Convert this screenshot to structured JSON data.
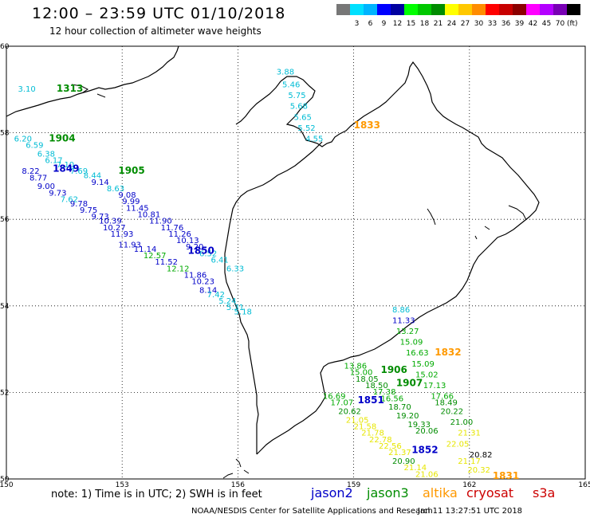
{
  "header": {
    "title": "12:00 – 23:59 UTC 01/10/2018",
    "subtitle": "12 hour collection of altimeter wave heights"
  },
  "color_scale": {
    "colors": [
      "#777777",
      "#00e0ff",
      "#00b4ff",
      "#0000ff",
      "#0000a0",
      "#00ff00",
      "#00c800",
      "#008c00",
      "#ffff00",
      "#ffc800",
      "#ff8c00",
      "#ff0000",
      "#c80000",
      "#8c0000",
      "#ff00ff",
      "#b400ff",
      "#7800b4",
      "#000000"
    ],
    "labels": [
      "3",
      "6",
      "9",
      "12",
      "15",
      "18",
      "21",
      "24",
      "27",
      "30",
      "33",
      "36",
      "39",
      "42",
      "45",
      "70"
    ],
    "unit": "(ft)"
  },
  "map": {
    "lon_range": [
      150,
      165
    ],
    "lat_range": [
      50,
      60
    ],
    "x_ticks": [
      "150",
      "153",
      "156",
      "159",
      "162",
      "165"
    ],
    "y_ticks": [
      "60",
      "58",
      "56",
      "54",
      "52",
      "50"
    ],
    "grid": "dotted",
    "land_color": "#ffffff",
    "coast_color": "#000000"
  },
  "satellite_colors": {
    "jason2": "#0000c8",
    "jason3": "#008c00",
    "altika": "#ff9900",
    "cryosat": "#cc0000",
    "s3a": "#cc0000",
    "light_blue": "#00bcd4",
    "green": "#00aa00",
    "yellow": "#e6e600"
  },
  "passes": [
    {
      "label": "1313",
      "color": "#008c00",
      "lon": 151.3,
      "lat": 58.95
    },
    {
      "label": "1833",
      "color": "#ff9900",
      "lon": 159.0,
      "lat": 58.1
    },
    {
      "label": "1904",
      "color": "#008c00",
      "lon": 151.1,
      "lat": 57.8
    },
    {
      "label": "1849",
      "color": "#0000c8",
      "lon": 151.2,
      "lat": 57.1
    },
    {
      "label": "1905",
      "color": "#008c00",
      "lon": 152.9,
      "lat": 57.05
    },
    {
      "label": "1850",
      "color": "#0000c8",
      "lon": 154.7,
      "lat": 55.2
    },
    {
      "label": "1832",
      "color": "#ff9900",
      "lon": 161.1,
      "lat": 52.85
    },
    {
      "label": "1906",
      "color": "#008c00",
      "lon": 159.7,
      "lat": 52.45
    },
    {
      "label": "1907",
      "color": "#008c00",
      "lon": 160.1,
      "lat": 52.15
    },
    {
      "label": "1851",
      "color": "#0000c8",
      "lon": 159.1,
      "lat": 51.75
    },
    {
      "label": "1852",
      "color": "#0000c8",
      "lon": 160.5,
      "lat": 50.6
    },
    {
      "label": "1831",
      "color": "#ff9900",
      "lon": 162.6,
      "lat": 50.0
    }
  ],
  "observations": [
    {
      "v": "3.10",
      "c": "#00bcd4",
      "lon": 150.3,
      "lat": 58.95
    },
    {
      "v": "3.88",
      "c": "#00bcd4",
      "lon": 157.0,
      "lat": 59.35
    },
    {
      "v": "5.46",
      "c": "#00bcd4",
      "lon": 157.15,
      "lat": 59.05
    },
    {
      "v": "5.75",
      "c": "#00bcd4",
      "lon": 157.3,
      "lat": 58.8
    },
    {
      "v": "5.68",
      "c": "#00bcd4",
      "lon": 157.35,
      "lat": 58.55
    },
    {
      "v": "5.65",
      "c": "#00bcd4",
      "lon": 157.45,
      "lat": 58.3
    },
    {
      "v": "5.52",
      "c": "#00bcd4",
      "lon": 157.55,
      "lat": 58.05
    },
    {
      "v": "4.55",
      "c": "#00bcd4",
      "lon": 157.75,
      "lat": 57.8
    },
    {
      "v": "6.20",
      "c": "#00bcd4",
      "lon": 150.2,
      "lat": 57.8
    },
    {
      "v": "6.59",
      "c": "#00bcd4",
      "lon": 150.5,
      "lat": 57.65
    },
    {
      "v": "6.38",
      "c": "#00bcd4",
      "lon": 150.8,
      "lat": 57.45
    },
    {
      "v": "6.17",
      "c": "#00bcd4",
      "lon": 151.0,
      "lat": 57.3
    },
    {
      "v": "7.10",
      "c": "#00bcd4",
      "lon": 151.3,
      "lat": 57.2
    },
    {
      "v": "7.69",
      "c": "#00bcd4",
      "lon": 151.65,
      "lat": 57.05
    },
    {
      "v": "8.22",
      "c": "#0000c8",
      "lon": 150.4,
      "lat": 57.05
    },
    {
      "v": "8.44",
      "c": "#00bcd4",
      "lon": 152.0,
      "lat": 56.95
    },
    {
      "v": "8.77",
      "c": "#0000c8",
      "lon": 150.6,
      "lat": 56.9
    },
    {
      "v": "9.14",
      "c": "#0000c8",
      "lon": 152.2,
      "lat": 56.8
    },
    {
      "v": "9.00",
      "c": "#0000c8",
      "lon": 150.8,
      "lat": 56.7
    },
    {
      "v": "8.63",
      "c": "#00bcd4",
      "lon": 152.6,
      "lat": 56.65
    },
    {
      "v": "9.73",
      "c": "#0000c8",
      "lon": 151.1,
      "lat": 56.55
    },
    {
      "v": "9.08",
      "c": "#0000c8",
      "lon": 152.9,
      "lat": 56.5
    },
    {
      "v": "7.62",
      "c": "#00bcd4",
      "lon": 151.4,
      "lat": 56.4
    },
    {
      "v": "9.99",
      "c": "#0000c8",
      "lon": 153.0,
      "lat": 56.35
    },
    {
      "v": "9.78",
      "c": "#0000c8",
      "lon": 151.65,
      "lat": 56.3
    },
    {
      "v": "11.45",
      "c": "#0000c8",
      "lon": 153.1,
      "lat": 56.2
    },
    {
      "v": "9.75",
      "c": "#0000c8",
      "lon": 151.9,
      "lat": 56.15
    },
    {
      "v": "10.81",
      "c": "#0000c8",
      "lon": 153.4,
      "lat": 56.05
    },
    {
      "v": "9.73",
      "c": "#0000c8",
      "lon": 152.2,
      "lat": 56.0
    },
    {
      "v": "11.90",
      "c": "#0000c8",
      "lon": 153.7,
      "lat": 55.9
    },
    {
      "v": "10.39",
      "c": "#0000c8",
      "lon": 152.4,
      "lat": 55.9
    },
    {
      "v": "11.76",
      "c": "#0000c8",
      "lon": 154.0,
      "lat": 55.75
    },
    {
      "v": "10.27",
      "c": "#0000c8",
      "lon": 152.5,
      "lat": 55.75
    },
    {
      "v": "11.26",
      "c": "#0000c8",
      "lon": 154.2,
      "lat": 55.6
    },
    {
      "v": "11.93",
      "c": "#0000c8",
      "lon": 152.7,
      "lat": 55.6
    },
    {
      "v": "10.13",
      "c": "#0000c8",
      "lon": 154.4,
      "lat": 55.45
    },
    {
      "v": "11.93",
      "c": "#0000c8",
      "lon": 152.9,
      "lat": 55.35
    },
    {
      "v": "9.20",
      "c": "#0000c8",
      "lon": 154.65,
      "lat": 55.3
    },
    {
      "v": "11.14",
      "c": "#0000c8",
      "lon": 153.3,
      "lat": 55.25
    },
    {
      "v": "6.52",
      "c": "#00bcd4",
      "lon": 155.0,
      "lat": 55.15
    },
    {
      "v": "12.57",
      "c": "#00aa00",
      "lon": 153.55,
      "lat": 55.1
    },
    {
      "v": "6.41",
      "c": "#00bcd4",
      "lon": 155.3,
      "lat": 55.0
    },
    {
      "v": "11.52",
      "c": "#0000c8",
      "lon": 153.85,
      "lat": 54.95
    },
    {
      "v": "6.33",
      "c": "#00bcd4",
      "lon": 155.7,
      "lat": 54.8
    },
    {
      "v": "12.12",
      "c": "#00aa00",
      "lon": 154.15,
      "lat": 54.8
    },
    {
      "v": "11.86",
      "c": "#0000c8",
      "lon": 154.6,
      "lat": 54.65
    },
    {
      "v": "10.23",
      "c": "#0000c8",
      "lon": 154.8,
      "lat": 54.5
    },
    {
      "v": "8.14",
      "c": "#0000c8",
      "lon": 155.0,
      "lat": 54.3
    },
    {
      "v": "7.42",
      "c": "#00bcd4",
      "lon": 155.2,
      "lat": 54.2
    },
    {
      "v": "5.24",
      "c": "#00bcd4",
      "lon": 155.5,
      "lat": 54.05
    },
    {
      "v": "5.31",
      "c": "#00bcd4",
      "lon": 155.7,
      "lat": 53.9
    },
    {
      "v": "5.18",
      "c": "#00bcd4",
      "lon": 155.9,
      "lat": 53.8
    },
    {
      "v": "8.86",
      "c": "#00bcd4",
      "lon": 160.0,
      "lat": 53.85
    },
    {
      "v": "11.33",
      "c": "#0000c8",
      "lon": 160.0,
      "lat": 53.6
    },
    {
      "v": "13.27",
      "c": "#00aa00",
      "lon": 160.1,
      "lat": 53.35
    },
    {
      "v": "15.09",
      "c": "#00aa00",
      "lon": 160.2,
      "lat": 53.1
    },
    {
      "v": "16.63",
      "c": "#00aa00",
      "lon": 160.35,
      "lat": 52.85
    },
    {
      "v": "15.09",
      "c": "#00aa00",
      "lon": 160.5,
      "lat": 52.6
    },
    {
      "v": "13.86",
      "c": "#00aa00",
      "lon": 158.75,
      "lat": 52.55
    },
    {
      "v": "15.00",
      "c": "#00aa00",
      "lon": 158.9,
      "lat": 52.4
    },
    {
      "v": "15.02",
      "c": "#00aa00",
      "lon": 160.6,
      "lat": 52.35
    },
    {
      "v": "18.05",
      "c": "#008c00",
      "lon": 159.05,
      "lat": 52.25
    },
    {
      "v": "17.13",
      "c": "#00aa00",
      "lon": 160.8,
      "lat": 52.1
    },
    {
      "v": "18.50",
      "c": "#008c00",
      "lon": 159.3,
      "lat": 52.1
    },
    {
      "v": "17.66",
      "c": "#00aa00",
      "lon": 161.0,
      "lat": 51.85
    },
    {
      "v": "16.69",
      "c": "#00aa00",
      "lon": 158.2,
      "lat": 51.85
    },
    {
      "v": "17.38",
      "c": "#00aa00",
      "lon": 159.5,
      "lat": 51.95
    },
    {
      "v": "18.49",
      "c": "#008c00",
      "lon": 161.1,
      "lat": 51.7
    },
    {
      "v": "17.07",
      "c": "#00aa00",
      "lon": 158.4,
      "lat": 51.7
    },
    {
      "v": "16.56",
      "c": "#00aa00",
      "lon": 159.7,
      "lat": 51.8
    },
    {
      "v": "20.22",
      "c": "#008c00",
      "lon": 161.25,
      "lat": 51.5
    },
    {
      "v": "20.62",
      "c": "#008c00",
      "lon": 158.6,
      "lat": 51.5
    },
    {
      "v": "18.70",
      "c": "#008c00",
      "lon": 159.9,
      "lat": 51.6
    },
    {
      "v": "21.00",
      "c": "#008c00",
      "lon": 161.5,
      "lat": 51.25
    },
    {
      "v": "19.20",
      "c": "#008c00",
      "lon": 160.1,
      "lat": 51.4
    },
    {
      "v": "19.33",
      "c": "#008c00",
      "lon": 160.4,
      "lat": 51.2
    },
    {
      "v": "20.06",
      "c": "#008c00",
      "lon": 160.6,
      "lat": 51.05
    },
    {
      "v": "21.31",
      "c": "#e6e600",
      "lon": 161.7,
      "lat": 51.0
    },
    {
      "v": "21.05",
      "c": "#e6e600",
      "lon": 158.8,
      "lat": 51.3
    },
    {
      "v": "21.58",
      "c": "#e6e600",
      "lon": 159.0,
      "lat": 51.15
    },
    {
      "v": "21.78",
      "c": "#e6e600",
      "lon": 159.2,
      "lat": 51.0
    },
    {
      "v": "22.78",
      "c": "#e6e600",
      "lon": 159.4,
      "lat": 50.85
    },
    {
      "v": "22.56",
      "c": "#e6e600",
      "lon": 159.65,
      "lat": 50.7
    },
    {
      "v": "22.05",
      "c": "#e6e600",
      "lon": 161.4,
      "lat": 50.75
    },
    {
      "v": "20.82",
      "c": "#000000",
      "lon": 162.0,
      "lat": 50.5
    },
    {
      "v": "21.37",
      "c": "#e6e600",
      "lon": 159.9,
      "lat": 50.55
    },
    {
      "v": "20.90",
      "c": "#008c00",
      "lon": 160.0,
      "lat": 50.35
    },
    {
      "v": "21.17",
      "c": "#e6e600",
      "lon": 161.7,
      "lat": 50.35
    },
    {
      "v": "21.14",
      "c": "#e6e600",
      "lon": 160.3,
      "lat": 50.2
    },
    {
      "v": "21.06",
      "c": "#e6e600",
      "lon": 160.6,
      "lat": 50.05
    },
    {
      "v": "20.32",
      "c": "#e6e600",
      "lon": 161.95,
      "lat": 50.15
    }
  ],
  "footer": {
    "note": "note:  1) Time is in UTC;  2) SWH is in feet",
    "legend": [
      "jason2",
      "jason3",
      "altika",
      "cryosat",
      "s3a"
    ],
    "credit_left": "NOAA/NESDIS Center for Satellite Applications and Research",
    "credit_right": "Jan 11 13:27:51 UTC 2018"
  }
}
